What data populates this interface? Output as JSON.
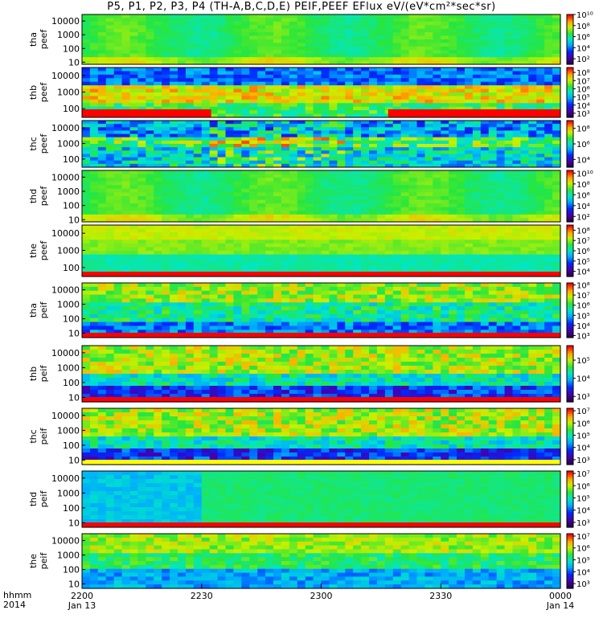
{
  "title": "P5, P1, P2, P3, P4 (TH-A,B,C,D,E) PEIF,PEEF EFlux eV/(eV*cm²*sec*sr)",
  "time_axis": {
    "hhmm_label": "hhmm",
    "year_label": "2014",
    "ticks": [
      {
        "time": "2200",
        "date": "Jan 13",
        "frac": 0.0
      },
      {
        "time": "2230",
        "date": "",
        "frac": 0.25
      },
      {
        "time": "2300",
        "date": "",
        "frac": 0.5
      },
      {
        "time": "2330",
        "date": "",
        "frac": 0.75
      },
      {
        "time": "0000",
        "date": "Jan 14",
        "frac": 1.0
      }
    ]
  },
  "chart_data": {
    "type": "heatmap",
    "x_range": [
      "2014-01-13 22:00",
      "2014-01-14 00:00"
    ],
    "panels": [
      {
        "probe": "tha",
        "product": "peef",
        "yticks": [
          "10000",
          "1000",
          "100",
          "10"
        ],
        "ytick_vals": [
          10000,
          1000,
          100,
          10
        ],
        "ylim": [
          7,
          30000
        ],
        "cbar_ticks": [
          "10¹⁰",
          "10⁸",
          "10⁶",
          "10⁴",
          "10²"
        ],
        "cbar_exps": [
          10,
          8,
          6,
          4,
          2
        ],
        "cbar_range": [
          1,
          10
        ],
        "texture": "ee_green",
        "band": "none"
      },
      {
        "probe": "thb",
        "product": "peef",
        "yticks": [
          "10000",
          "1000",
          "100"
        ],
        "ytick_vals": [
          10000,
          1000,
          100
        ],
        "ylim": [
          30,
          30000
        ],
        "cbar_ticks": [
          "10⁸",
          "10⁷",
          "10⁶",
          "10⁵",
          "10⁴",
          "10³"
        ],
        "cbar_exps": [
          8,
          7,
          6,
          5,
          4,
          3
        ],
        "cbar_range": [
          2.5,
          8.6
        ],
        "texture": "ee_mixed",
        "band": "red_partial"
      },
      {
        "probe": "thc",
        "product": "peef",
        "yticks": [
          "10000",
          "1000",
          "100"
        ],
        "ytick_vals": [
          10000,
          1000,
          100
        ],
        "ylim": [
          30,
          30000
        ],
        "cbar_ticks": [
          "10⁸",
          "10⁶",
          "10⁴"
        ],
        "cbar_exps": [
          8,
          6,
          4
        ],
        "cbar_range": [
          3,
          9
        ],
        "texture": "ee_blue",
        "band": "none"
      },
      {
        "probe": "thd",
        "product": "peef",
        "yticks": [
          "10000",
          "1000",
          "100",
          "10"
        ],
        "ytick_vals": [
          10000,
          1000,
          100,
          10
        ],
        "ylim": [
          7,
          30000
        ],
        "cbar_ticks": [
          "10¹⁰",
          "10⁸",
          "10⁶",
          "10⁴",
          "10²"
        ],
        "cbar_exps": [
          10,
          8,
          6,
          4,
          2
        ],
        "cbar_range": [
          1,
          10.5
        ],
        "texture": "ee_green",
        "band": "none"
      },
      {
        "probe": "the",
        "product": "peef",
        "yticks": [
          "10000",
          "1000",
          "100"
        ],
        "ytick_vals": [
          10000,
          1000,
          100
        ],
        "ylim": [
          30,
          30000
        ],
        "cbar_ticks": [
          "10⁸",
          "10⁷",
          "10⁶",
          "10⁵",
          "10⁴"
        ],
        "cbar_exps": [
          8,
          7,
          6,
          5,
          4
        ],
        "cbar_range": [
          3.5,
          8.5
        ],
        "texture": "ee_yellow",
        "band": "red_bottom"
      },
      {
        "probe": "tha",
        "product": "peif",
        "yticks": [
          "10000",
          "1000",
          "100",
          "10"
        ],
        "ytick_vals": [
          10000,
          1000,
          100,
          10
        ],
        "ylim": [
          5,
          30000
        ],
        "cbar_ticks": [
          "10⁸",
          "10⁷",
          "10⁶",
          "10⁵",
          "10⁴",
          "10³"
        ],
        "cbar_exps": [
          8,
          7,
          6,
          5,
          4,
          3
        ],
        "cbar_range": [
          2.8,
          8.2
        ],
        "texture": "ei_blocky",
        "band": "red_bottom"
      },
      {
        "probe": "thb",
        "product": "peif",
        "yticks": [
          "10000",
          "1000",
          "100",
          "10"
        ],
        "ytick_vals": [
          10000,
          1000,
          100,
          10
        ],
        "ylim": [
          5,
          30000
        ],
        "cbar_ticks": [
          "10⁵",
          "10⁴",
          "10³"
        ],
        "cbar_exps": [
          5,
          4,
          3
        ],
        "cbar_range": [
          2.7,
          5.8
        ],
        "texture": "ei_dark",
        "band": "red_bottom"
      },
      {
        "probe": "thc",
        "product": "peif",
        "yticks": [
          "10000",
          "1000",
          "100",
          "10"
        ],
        "ytick_vals": [
          10000,
          1000,
          100,
          10
        ],
        "ylim": [
          5,
          30000
        ],
        "cbar_ticks": [
          "10⁷",
          "10⁶",
          "10⁵",
          "10⁴",
          "10³"
        ],
        "cbar_exps": [
          7,
          6,
          5,
          4,
          3
        ],
        "cbar_range": [
          2.6,
          7.2
        ],
        "texture": "ei_dark",
        "band": "yellow_bottom"
      },
      {
        "probe": "thd",
        "product": "peif",
        "yticks": [
          "10000",
          "1000",
          "100",
          "10"
        ],
        "ytick_vals": [
          10000,
          1000,
          100,
          10
        ],
        "ylim": [
          5,
          30000
        ],
        "cbar_ticks": [
          "10⁷",
          "10⁶",
          "10⁵",
          "10⁴",
          "10³"
        ],
        "cbar_exps": [
          7,
          6,
          5,
          4,
          3
        ],
        "cbar_range": [
          2.6,
          7.2
        ],
        "texture": "ei_flat",
        "band": "red_bottom"
      },
      {
        "probe": "the",
        "product": "peif",
        "yticks": [
          "10000",
          "1000",
          "100",
          "10"
        ],
        "ytick_vals": [
          10000,
          1000,
          100,
          10
        ],
        "ylim": [
          5,
          30000
        ],
        "cbar_ticks": [
          "10⁷",
          "10⁶",
          "10⁵",
          "10⁴",
          "10³"
        ],
        "cbar_exps": [
          7,
          6,
          5,
          4,
          3
        ],
        "cbar_range": [
          2.6,
          7.2
        ],
        "texture": "ei_mid",
        "band": "none"
      }
    ]
  }
}
